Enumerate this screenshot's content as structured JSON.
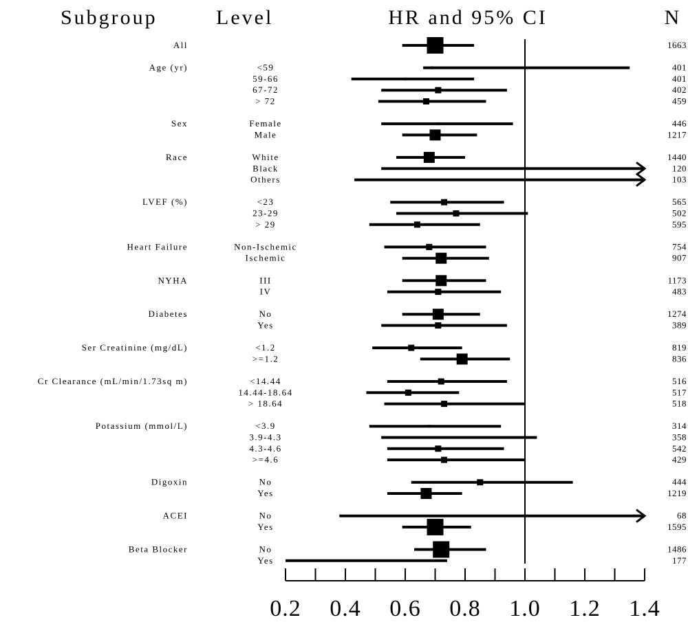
{
  "chart_data": {
    "type": "forest",
    "headers": {
      "subgroup": "Subgroup",
      "level": "Level",
      "hr": "HR and 95% CI",
      "n": "N"
    },
    "xlim": [
      0.2,
      1.4
    ],
    "reference_line": 1.0,
    "x_ticks": [
      "0.2",
      "0.4",
      "0.6",
      "0.8",
      "1.0",
      "1.2",
      "1.4"
    ],
    "groups": [
      {
        "subgroup": "All",
        "rows": [
          {
            "level": "",
            "hr": 0.7,
            "lo": 0.59,
            "hi": 0.83,
            "n": "1663",
            "size": 3
          }
        ]
      },
      {
        "subgroup": "Age (yr)",
        "rows": [
          {
            "level": "<59",
            "hr": 0.69,
            "lo": 0.66,
            "hi": 1.35,
            "n": "401",
            "size": 0
          },
          {
            "level": "59-66",
            "hr": 0.6,
            "lo": 0.42,
            "hi": 0.83,
            "n": "401",
            "size": 0
          },
          {
            "level": "67-72",
            "hr": 0.71,
            "lo": 0.52,
            "hi": 0.94,
            "n": "402",
            "size": 1
          },
          {
            "level": "> 72",
            "hr": 0.67,
            "lo": 0.51,
            "hi": 0.87,
            "n": "459",
            "size": 1
          }
        ]
      },
      {
        "subgroup": "Sex",
        "rows": [
          {
            "level": "Female",
            "hr": 0.71,
            "lo": 0.52,
            "hi": 0.96,
            "n": "446",
            "size": 0
          },
          {
            "level": "Male",
            "hr": 0.7,
            "lo": 0.59,
            "hi": 0.84,
            "n": "1217",
            "size": 2
          }
        ]
      },
      {
        "subgroup": "Race",
        "rows": [
          {
            "level": "White",
            "hr": 0.68,
            "lo": 0.57,
            "hi": 0.8,
            "n": "1440",
            "size": 2
          },
          {
            "level": "Black",
            "hr": null,
            "lo": 0.52,
            "hi": 1.4,
            "n": "120",
            "size": 0,
            "arrow": true
          },
          {
            "level": "Others",
            "hr": null,
            "lo": 0.43,
            "hi": 1.4,
            "n": "103",
            "size": 0,
            "arrow": true
          }
        ]
      },
      {
        "subgroup": "LVEF (%)",
        "rows": [
          {
            "level": "<23",
            "hr": 0.73,
            "lo": 0.55,
            "hi": 0.93,
            "n": "565",
            "size": 1
          },
          {
            "level": "23-29",
            "hr": 0.77,
            "lo": 0.57,
            "hi": 1.01,
            "n": "502",
            "size": 1
          },
          {
            "level": "> 29",
            "hr": 0.64,
            "lo": 0.48,
            "hi": 0.85,
            "n": "595",
            "size": 1
          }
        ]
      },
      {
        "subgroup": "Heart Failure",
        "rows": [
          {
            "level": "Non-Ischemic",
            "hr": 0.68,
            "lo": 0.53,
            "hi": 0.87,
            "n": "754",
            "size": 1
          },
          {
            "level": "Ischemic",
            "hr": 0.72,
            "lo": 0.59,
            "hi": 0.88,
            "n": "907",
            "size": 2
          }
        ]
      },
      {
        "subgroup": "NYHA",
        "rows": [
          {
            "level": "III",
            "hr": 0.72,
            "lo": 0.59,
            "hi": 0.87,
            "n": "1173",
            "size": 2
          },
          {
            "level": "IV",
            "hr": 0.71,
            "lo": 0.54,
            "hi": 0.92,
            "n": "483",
            "size": 1
          }
        ]
      },
      {
        "subgroup": "Diabetes",
        "rows": [
          {
            "level": "No",
            "hr": 0.71,
            "lo": 0.59,
            "hi": 0.85,
            "n": "1274",
            "size": 2
          },
          {
            "level": "Yes",
            "hr": 0.71,
            "lo": 0.52,
            "hi": 0.94,
            "n": "389",
            "size": 1
          }
        ]
      },
      {
        "subgroup": "Ser Creatinine (mg/dL)",
        "rows": [
          {
            "level": "<1.2",
            "hr": 0.62,
            "lo": 0.49,
            "hi": 0.79,
            "n": "819",
            "size": 1
          },
          {
            "level": ">=1.2",
            "hr": 0.79,
            "lo": 0.65,
            "hi": 0.95,
            "n": "836",
            "size": 2
          }
        ]
      },
      {
        "subgroup": "Cr Clearance (mL/min/1.73sq m)",
        "rows": [
          {
            "level": "<14.44",
            "hr": 0.72,
            "lo": 0.54,
            "hi": 0.94,
            "n": "516",
            "size": 1
          },
          {
            "level": "14.44-18.64",
            "hr": 0.61,
            "lo": 0.47,
            "hi": 0.78,
            "n": "517",
            "size": 1
          },
          {
            "level": "> 18.64",
            "hr": 0.73,
            "lo": 0.53,
            "hi": 1.0,
            "n": "518",
            "size": 1
          }
        ]
      },
      {
        "subgroup": "Potassium (mmol/L)",
        "rows": [
          {
            "level": "<3.9",
            "hr": 0.68,
            "lo": 0.48,
            "hi": 0.92,
            "n": "314",
            "size": 0
          },
          {
            "level": "3.9-4.3",
            "hr": 0.74,
            "lo": 0.52,
            "hi": 1.04,
            "n": "358",
            "size": 0
          },
          {
            "level": "4.3-4.6",
            "hr": 0.71,
            "lo": 0.54,
            "hi": 0.93,
            "n": "542",
            "size": 1
          },
          {
            "level": ">=4.6",
            "hr": 0.73,
            "lo": 0.54,
            "hi": 1.0,
            "n": "429",
            "size": 1
          }
        ]
      },
      {
        "subgroup": "Digoxin",
        "rows": [
          {
            "level": "No",
            "hr": 0.85,
            "lo": 0.62,
            "hi": 1.16,
            "n": "444",
            "size": 1
          },
          {
            "level": "Yes",
            "hr": 0.67,
            "lo": 0.54,
            "hi": 0.79,
            "n": "1219",
            "size": 2
          }
        ]
      },
      {
        "subgroup": "ACEI",
        "rows": [
          {
            "level": "No",
            "hr": null,
            "lo": 0.38,
            "hi": 1.4,
            "n": "68",
            "size": 0,
            "arrow": true
          },
          {
            "level": "Yes",
            "hr": 0.7,
            "lo": 0.59,
            "hi": 0.82,
            "n": "1595",
            "size": 3
          }
        ]
      },
      {
        "subgroup": "Beta Blocker",
        "rows": [
          {
            "level": "No",
            "hr": 0.72,
            "lo": 0.63,
            "hi": 0.87,
            "n": "1486",
            "size": 3
          },
          {
            "level": "Yes",
            "hr": null,
            "lo": 0.2,
            "hi": 0.74,
            "n": "177",
            "size": 0
          }
        ]
      }
    ]
  }
}
